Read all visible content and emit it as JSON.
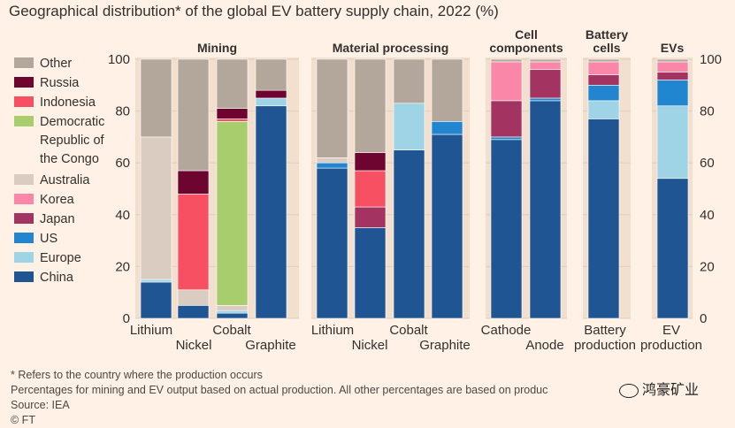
{
  "title": "Geographical distribution* of the global EV battery supply chain, 2022 (%)",
  "chart_data": {
    "type": "bar",
    "stacked": true,
    "title": "Geographical distribution* of the global EV battery supply chain, 2022 (%)",
    "ylim": [
      0,
      100
    ],
    "yticks": [
      0,
      20,
      40,
      60,
      80,
      100
    ],
    "series": [
      {
        "name": "China",
        "color": "#1f5592"
      },
      {
        "name": "Europe",
        "color": "#9fd3e6"
      },
      {
        "name": "US",
        "color": "#2185cf"
      },
      {
        "name": "Japan",
        "color": "#a33462"
      },
      {
        "name": "Korea",
        "color": "#fa86a8"
      },
      {
        "name": "Australia",
        "color": "#dbccc1"
      },
      {
        "name": "Democratic Republic of the Congo",
        "color": "#a8cd6d"
      },
      {
        "name": "Indonesia",
        "color": "#f75062"
      },
      {
        "name": "Russia",
        "color": "#6e0530"
      },
      {
        "name": "Other",
        "color": "#b3a69b"
      }
    ],
    "legend_order": [
      "Other",
      "Russia",
      "Indonesia",
      "Democratic Republic of the Congo",
      "Australia",
      "Korea",
      "Japan",
      "US",
      "Europe",
      "China"
    ],
    "legend_lines": [
      [
        "Other"
      ],
      [
        "Russia"
      ],
      [
        "Indonesia"
      ],
      [
        "Democratic",
        "Republic of",
        "the Congo"
      ],
      [
        "Australia"
      ],
      [
        "Korea"
      ],
      [
        "Japan"
      ],
      [
        "US"
      ],
      [
        "Europe"
      ],
      [
        "China"
      ]
    ],
    "groups": [
      {
        "name": "Mining",
        "bars": [
          {
            "label": "Lithium",
            "values": {
              "China": 14,
              "Europe": 1,
              "Australia": 55,
              "Other": 30
            }
          },
          {
            "label": "Nickel",
            "values": {
              "China": 5,
              "Australia": 6,
              "Indonesia": 37,
              "Russia": 9,
              "Other": 43
            }
          },
          {
            "label": "Cobalt",
            "values": {
              "China": 2,
              "Europe": 1,
              "Australia": 2,
              "Democratic Republic of the Congo": 71,
              "Indonesia": 1,
              "Russia": 4,
              "Other": 19
            }
          },
          {
            "label": "Graphite",
            "values": {
              "China": 82,
              "Europe": 3,
              "Russia": 3,
              "Other": 12
            }
          }
        ]
      },
      {
        "name": "Material processing",
        "bars": [
          {
            "label": "Lithium",
            "values": {
              "China": 58,
              "US": 2,
              "Australia": 2,
              "Other": 38
            }
          },
          {
            "label": "Nickel",
            "values": {
              "China": 35,
              "Japan": 8,
              "Indonesia": 14,
              "Russia": 7,
              "Other": 36
            }
          },
          {
            "label": "Cobalt",
            "values": {
              "China": 65,
              "Europe": 18,
              "Other": 17
            }
          },
          {
            "label": "Graphite",
            "values": {
              "China": 71,
              "US": 5,
              "Other": 24
            }
          }
        ]
      },
      {
        "name": "Cell components",
        "bars": [
          {
            "label": "Cathode",
            "values": {
              "China": 69,
              "US": 1,
              "Japan": 14,
              "Korea": 15,
              "Other": 1
            }
          },
          {
            "label": "Anode",
            "values": {
              "China": 84,
              "US": 1,
              "Japan": 11,
              "Korea": 3,
              "Other": 1
            }
          }
        ]
      },
      {
        "name": "Battery cells",
        "bars": [
          {
            "label": "Battery production",
            "values": {
              "China": 77,
              "Europe": 7,
              "US": 6,
              "Japan": 4,
              "Korea": 5,
              "Other": 1
            }
          }
        ]
      },
      {
        "name": "EVs",
        "bars": [
          {
            "label": "EV production",
            "values": {
              "China": 54,
              "Europe": 28,
              "US": 10,
              "Japan": 3,
              "Korea": 4,
              "Other": 1
            }
          }
        ]
      }
    ],
    "group_headers": [
      [
        "Mining"
      ],
      [
        "Material processing"
      ],
      [
        "Cell",
        "components"
      ],
      [
        "Battery",
        "cells"
      ],
      [
        "EVs"
      ]
    ],
    "bar_label_lines": [
      [
        "Lithium"
      ],
      [
        "Nickel"
      ],
      [
        "Cobalt"
      ],
      [
        "Graphite"
      ],
      [
        "Lithium"
      ],
      [
        "Nickel"
      ],
      [
        "Cobalt"
      ],
      [
        "Graphite"
      ],
      [
        "Cathode"
      ],
      [
        "Anode"
      ],
      [
        "Battery",
        "production"
      ],
      [
        "EV",
        "production"
      ]
    ]
  },
  "footnotes": [
    "* Refers to the country where the production occurs",
    "Percentages for mining and EV output based on actual production. All other percentages are based on produc",
    "Source: IEA",
    "© FT"
  ],
  "watermark": "鸿豪矿业"
}
